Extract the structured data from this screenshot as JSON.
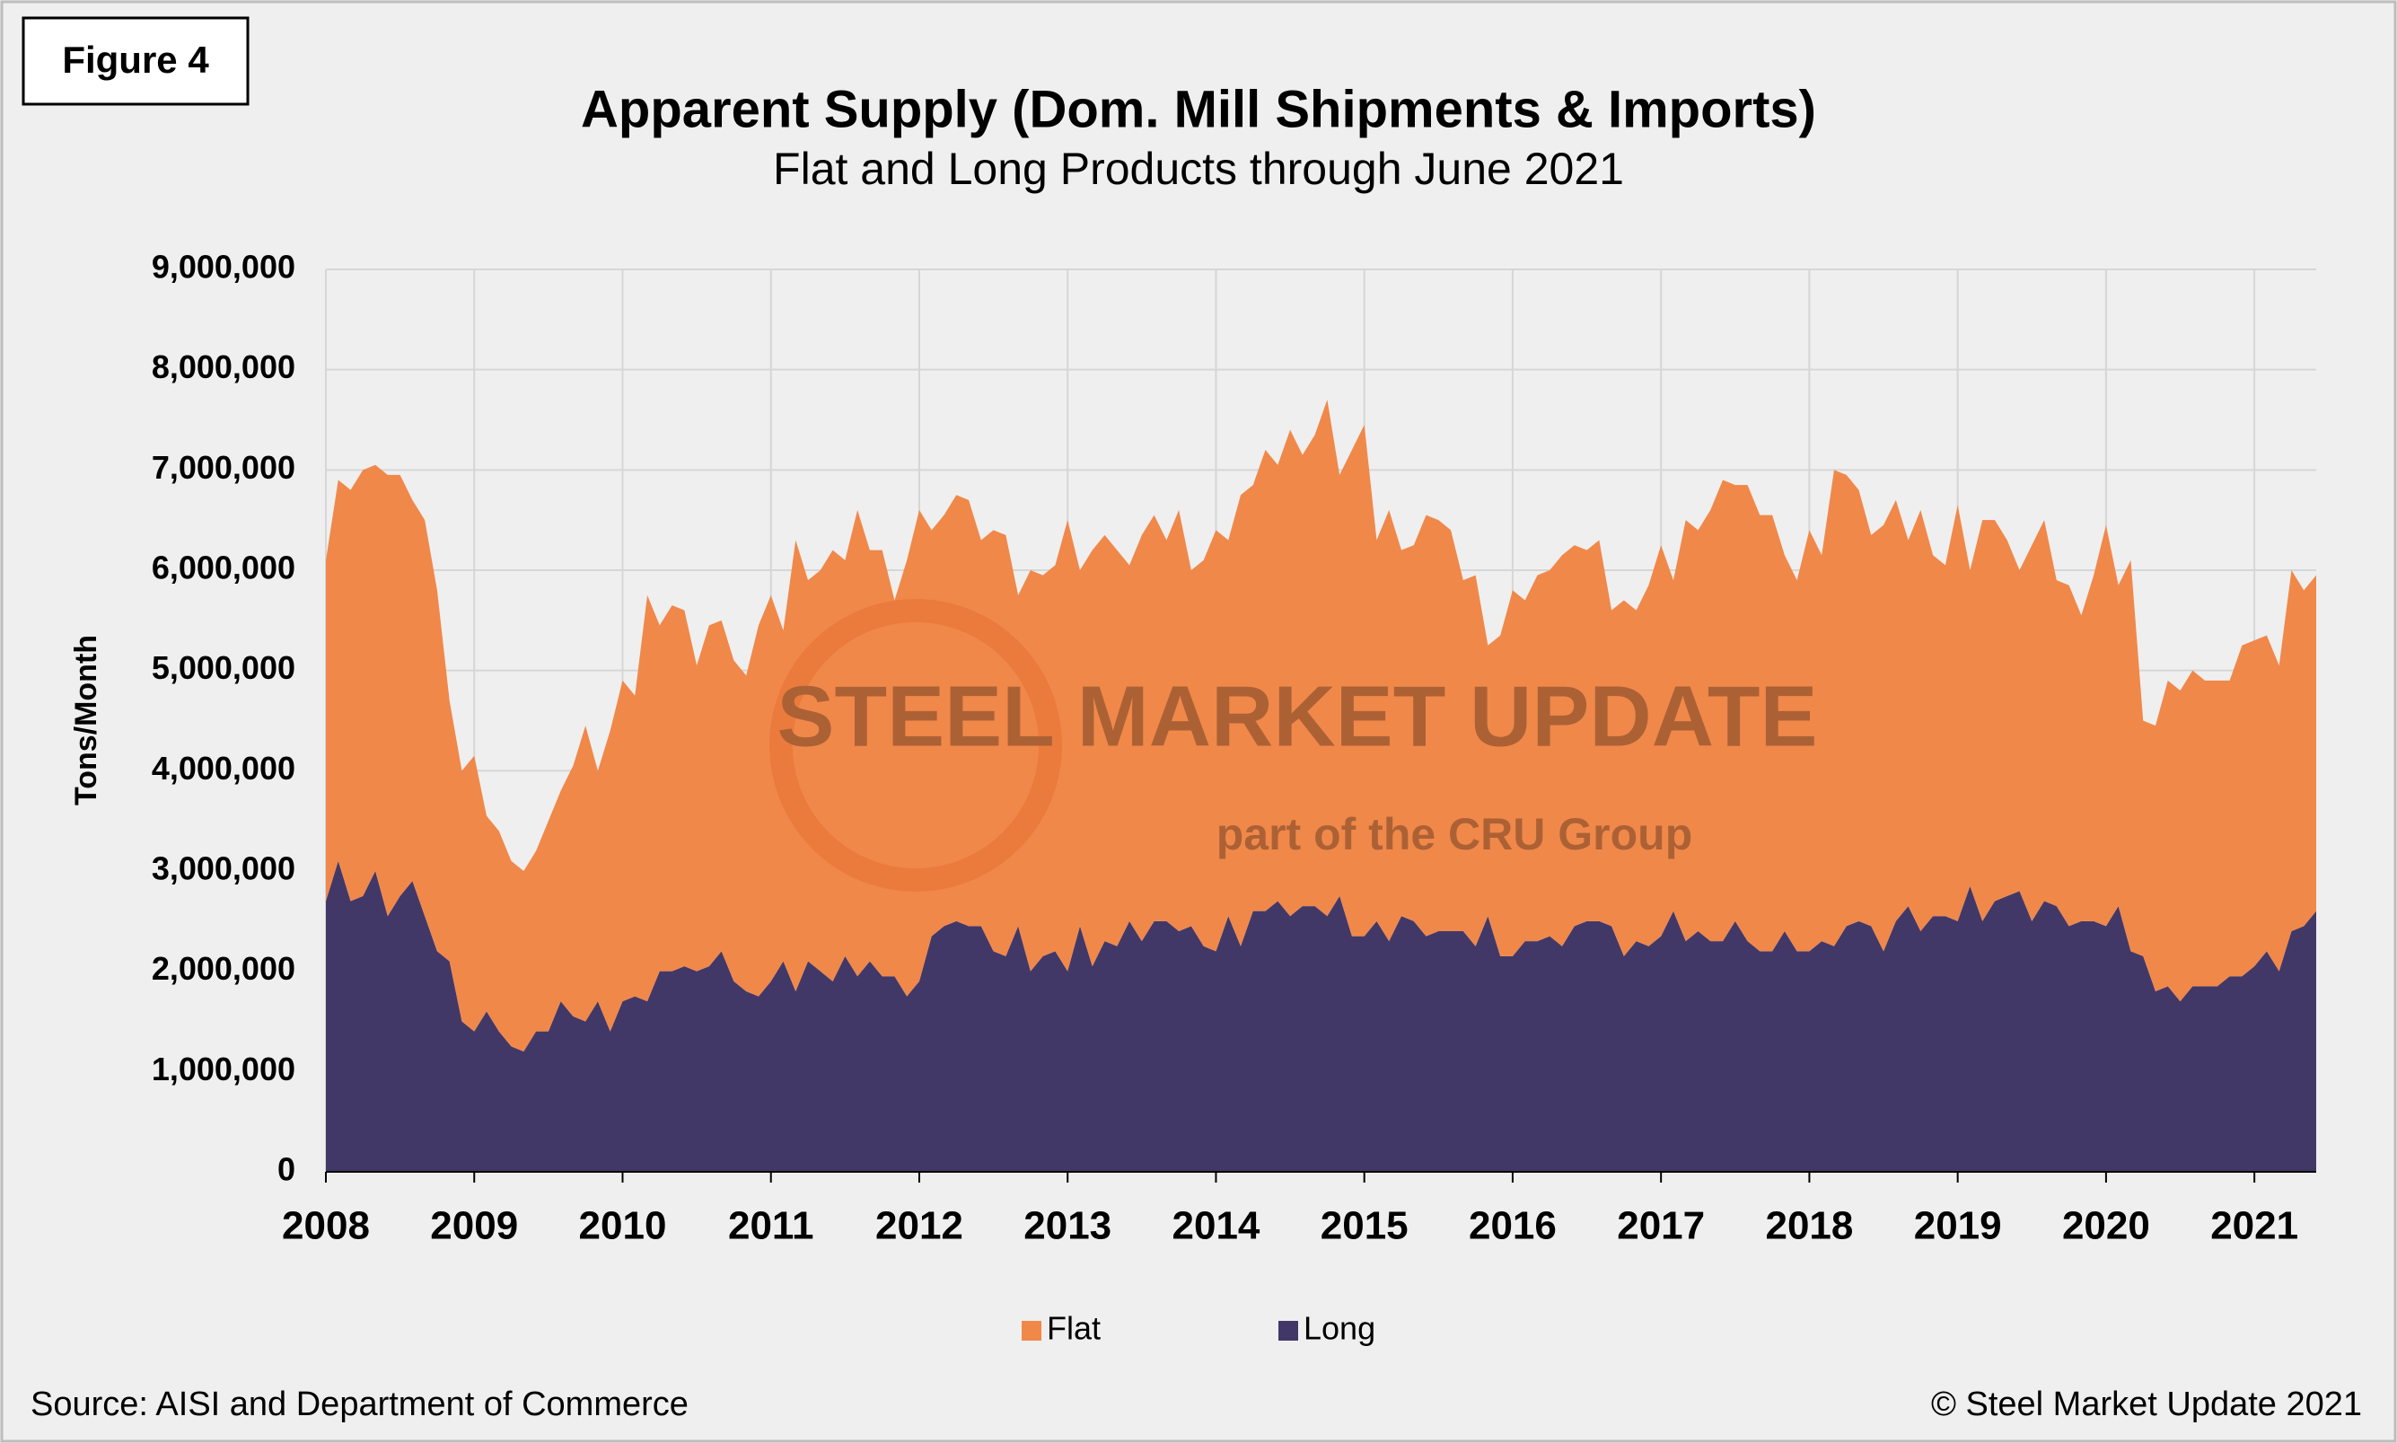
{
  "figure_label": "Figure 4",
  "chart_data": {
    "type": "stacked-area",
    "title": "Apparent Supply (Dom. Mill Shipments & Imports)",
    "subtitle": "Flat and Long Products through June 2021",
    "y_label": "Tons/Month",
    "watermark": "STEEL MARKET UPDATE",
    "watermark_sub": "part of the CRU Group",
    "categories": [
      "2008",
      null,
      null,
      null,
      null,
      null,
      null,
      null,
      null,
      null,
      null,
      null,
      "2009",
      null,
      null,
      null,
      null,
      null,
      null,
      null,
      null,
      null,
      null,
      null,
      "2010",
      null,
      null,
      null,
      null,
      null,
      null,
      null,
      null,
      null,
      null,
      null,
      "2011",
      null,
      null,
      null,
      null,
      null,
      null,
      null,
      null,
      null,
      null,
      null,
      "2012",
      null,
      null,
      null,
      null,
      null,
      null,
      null,
      null,
      null,
      null,
      null,
      "2013",
      null,
      null,
      null,
      null,
      null,
      null,
      null,
      null,
      null,
      null,
      null,
      "2014",
      null,
      null,
      null,
      null,
      null,
      null,
      null,
      null,
      null,
      null,
      null,
      "2015",
      null,
      null,
      null,
      null,
      null,
      null,
      null,
      null,
      null,
      null,
      null,
      "2016",
      null,
      null,
      null,
      null,
      null,
      null,
      null,
      null,
      null,
      null,
      null,
      "2017",
      null,
      null,
      null,
      null,
      null,
      null,
      null,
      null,
      null,
      null,
      null,
      "2018",
      null,
      null,
      null,
      null,
      null,
      null,
      null,
      null,
      null,
      null,
      null,
      "2019",
      null,
      null,
      null,
      null,
      null,
      null,
      null,
      null,
      null,
      null,
      null,
      "2020",
      null,
      null,
      null,
      null,
      null,
      null,
      null,
      null,
      null,
      null,
      null,
      "2021",
      null,
      null,
      null,
      null,
      null
    ],
    "series": [
      {
        "name": "Flat",
        "color": "#f0884a",
        "values": [
          3400000,
          3800000,
          4100000,
          4250000,
          4050000,
          4400000,
          4200000,
          3800000,
          3950000,
          3600000,
          2600000,
          2500000,
          2750000,
          1950000,
          2000000,
          1850000,
          1800000,
          1800000,
          2100000,
          2100000,
          2500000,
          2950000,
          2300000,
          3000000,
          3200000,
          3000000,
          4050000,
          3450000,
          3650000,
          3550000,
          3050000,
          3400000,
          3300000,
          3200000,
          3150000,
          3700000,
          3850000,
          3300000,
          4500000,
          3800000,
          4000000,
          4300000,
          3950000,
          4650000,
          4100000,
          4250000,
          3750000,
          4350000,
          4700000,
          4050000,
          4100000,
          4250000,
          4250000,
          3850000,
          4200000,
          4200000,
          3300000,
          4000000,
          3800000,
          3850000,
          4500000,
          3550000,
          4150000,
          4050000,
          3950000,
          3550000,
          4050000,
          4050000,
          3800000,
          4200000,
          3550000,
          3850000,
          4200000,
          3750000,
          4500000,
          4250000,
          4600000,
          4350000,
          4850000,
          4500000,
          4700000,
          5150000,
          4200000,
          4850000,
          5100000,
          3800000,
          4300000,
          3650000,
          3750000,
          4200000,
          4100000,
          4000000,
          3500000,
          3700000,
          2700000,
          3200000,
          3650000,
          3400000,
          3650000,
          3650000,
          3900000,
          3800000,
          3700000,
          3800000,
          3150000,
          3550000,
          3300000,
          3600000,
          3900000,
          3300000,
          4200000,
          4000000,
          4300000,
          4600000,
          4350000,
          4550000,
          4350000,
          4350000,
          3750000,
          3700000,
          4200000,
          3850000,
          4750000,
          4500000,
          4300000,
          3900000,
          4250000,
          4200000,
          3650000,
          4200000,
          3600000,
          3500000,
          4150000,
          3150000,
          4000000,
          3800000,
          3550000,
          3200000,
          3750000,
          3800000,
          3250000,
          3400000,
          3050000,
          3450000,
          4000000,
          3200000,
          3900000,
          2350000,
          2650000,
          3050000,
          3100000,
          3150000,
          3050000,
          3050000,
          2950000,
          3300000,
          3250000,
          3150000,
          3050000,
          3600000,
          3350000,
          3350000
        ]
      },
      {
        "name": "Long",
        "color": "#423867",
        "values": [
          2700000,
          3100000,
          2700000,
          2750000,
          3000000,
          2550000,
          2750000,
          2900000,
          2550000,
          2200000,
          2100000,
          1500000,
          1400000,
          1600000,
          1400000,
          1250000,
          1200000,
          1400000,
          1400000,
          1700000,
          1550000,
          1500000,
          1700000,
          1400000,
          1700000,
          1750000,
          1700000,
          2000000,
          2000000,
          2050000,
          2000000,
          2050000,
          2200000,
          1900000,
          1800000,
          1750000,
          1900000,
          2100000,
          1800000,
          2100000,
          2000000,
          1900000,
          2150000,
          1950000,
          2100000,
          1950000,
          1950000,
          1750000,
          1900000,
          2350000,
          2450000,
          2500000,
          2450000,
          2450000,
          2200000,
          2150000,
          2450000,
          2000000,
          2150000,
          2200000,
          2000000,
          2450000,
          2050000,
          2300000,
          2250000,
          2500000,
          2300000,
          2500000,
          2500000,
          2400000,
          2450000,
          2250000,
          2200000,
          2550000,
          2250000,
          2600000,
          2600000,
          2700000,
          2550000,
          2650000,
          2650000,
          2550000,
          2750000,
          2350000,
          2350000,
          2500000,
          2300000,
          2550000,
          2500000,
          2350000,
          2400000,
          2400000,
          2400000,
          2250000,
          2550000,
          2150000,
          2150000,
          2300000,
          2300000,
          2350000,
          2250000,
          2450000,
          2500000,
          2500000,
          2450000,
          2150000,
          2300000,
          2250000,
          2350000,
          2600000,
          2300000,
          2400000,
          2300000,
          2300000,
          2500000,
          2300000,
          2200000,
          2200000,
          2400000,
          2200000,
          2200000,
          2300000,
          2250000,
          2450000,
          2500000,
          2450000,
          2200000,
          2500000,
          2650000,
          2400000,
          2550000,
          2550000,
          2500000,
          2850000,
          2500000,
          2700000,
          2750000,
          2800000,
          2500000,
          2700000,
          2650000,
          2450000,
          2500000,
          2500000,
          2450000,
          2650000,
          2200000,
          2150000,
          1800000,
          1850000,
          1700000,
          1850000,
          1850000,
          1850000,
          1950000,
          1950000,
          2050000,
          2200000,
          2000000,
          2400000,
          2450000,
          2600000
        ]
      }
    ],
    "ylim": [
      0,
      9000000
    ],
    "yticks": [
      0,
      {
        "value": 1000000,
        "label": "1,000,000"
      },
      {
        "value": 2000000,
        "label": "2,000,000"
      },
      {
        "value": 3000000,
        "label": "3,000,000"
      },
      {
        "value": 4000000,
        "label": "4,000,000"
      },
      {
        "value": 5000000,
        "label": "5,000,000"
      },
      {
        "value": 6000000,
        "label": "6,000,000"
      },
      {
        "value": 7000000,
        "label": "7,000,000"
      },
      {
        "value": 8000000,
        "label": "8,000,000"
      },
      {
        "value": 9000000,
        "label": "9,000,000"
      }
    ],
    "grid": true,
    "legend": "bottom",
    "source": "Source: AISI and Department of Commerce",
    "copyright": "© Steel Market Update 2021"
  }
}
